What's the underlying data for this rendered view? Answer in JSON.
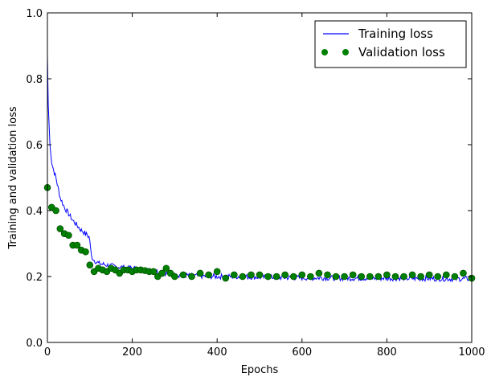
{
  "chart_data": {
    "type": "line",
    "xlabel": "Epochs",
    "ylabel": "Training and validation loss",
    "xlim": [
      0,
      1000
    ],
    "ylim": [
      0.0,
      1.0
    ],
    "xticks": [
      "0",
      "200",
      "400",
      "600",
      "800",
      "1000"
    ],
    "yticks": [
      "0.0",
      "0.2",
      "0.4",
      "0.6",
      "0.8",
      "1.0"
    ],
    "grid": false,
    "legend": {
      "placement": "top-right"
    },
    "series": [
      {
        "name": "Training loss",
        "style": "line",
        "color": "#0000ff",
        "x": [
          0,
          2,
          4,
          6,
          8,
          10,
          15,
          20,
          25,
          30,
          40,
          50,
          60,
          70,
          80,
          90,
          98,
          100,
          102,
          104,
          110,
          120,
          140,
          160,
          180,
          200,
          220,
          240,
          260,
          280,
          300,
          350,
          400,
          450,
          500,
          550,
          600,
          650,
          700,
          750,
          800,
          850,
          900,
          950,
          1000
        ],
        "values": [
          0.87,
          0.72,
          0.66,
          0.6,
          0.57,
          0.55,
          0.52,
          0.5,
          0.47,
          0.44,
          0.41,
          0.39,
          0.37,
          0.355,
          0.34,
          0.33,
          0.32,
          0.31,
          0.28,
          0.26,
          0.25,
          0.24,
          0.235,
          0.23,
          0.228,
          0.225,
          0.222,
          0.218,
          0.215,
          0.21,
          0.205,
          0.202,
          0.2,
          0.2,
          0.198,
          0.197,
          0.196,
          0.196,
          0.195,
          0.195,
          0.195,
          0.194,
          0.194,
          0.193,
          0.193
        ]
      },
      {
        "name": "Validation loss",
        "style": "scatter",
        "color": "#008000",
        "x": [
          0,
          10,
          20,
          30,
          40,
          50,
          60,
          70,
          80,
          90,
          100,
          110,
          120,
          130,
          140,
          150,
          160,
          170,
          180,
          190,
          200,
          210,
          220,
          230,
          240,
          250,
          260,
          270,
          280,
          290,
          300,
          320,
          340,
          360,
          380,
          400,
          420,
          440,
          460,
          480,
          500,
          520,
          540,
          560,
          580,
          600,
          620,
          640,
          660,
          680,
          700,
          720,
          740,
          760,
          780,
          800,
          820,
          840,
          860,
          880,
          900,
          920,
          940,
          960,
          980,
          1000
        ],
        "values": [
          0.47,
          0.41,
          0.4,
          0.345,
          0.33,
          0.325,
          0.295,
          0.295,
          0.28,
          0.275,
          0.235,
          0.215,
          0.225,
          0.22,
          0.215,
          0.225,
          0.22,
          0.21,
          0.22,
          0.22,
          0.215,
          0.22,
          0.22,
          0.218,
          0.215,
          0.215,
          0.2,
          0.21,
          0.225,
          0.21,
          0.2,
          0.205,
          0.2,
          0.21,
          0.205,
          0.215,
          0.195,
          0.205,
          0.2,
          0.205,
          0.205,
          0.2,
          0.2,
          0.205,
          0.2,
          0.205,
          0.2,
          0.21,
          0.205,
          0.2,
          0.2,
          0.205,
          0.2,
          0.2,
          0.2,
          0.205,
          0.2,
          0.2,
          0.205,
          0.2,
          0.205,
          0.2,
          0.205,
          0.2,
          0.21,
          0.195
        ]
      }
    ]
  }
}
